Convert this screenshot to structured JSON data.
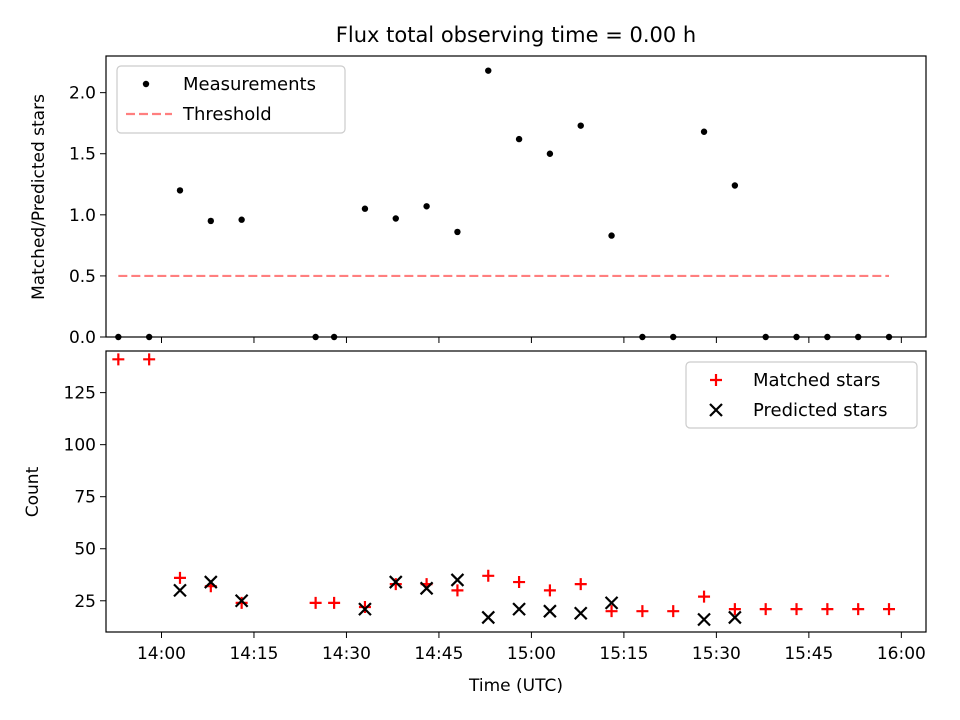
{
  "title": "Flux total observing time = 0.00 h",
  "colors": {
    "measure": "#000000",
    "threshold": "#ff7f7f",
    "matched": "#ff0000",
    "predicted": "#000000"
  },
  "chart_data": [
    {
      "type": "scatter",
      "panel": "top",
      "ylabel": "Matched/Predicted stars",
      "xlim": [
        "13:51",
        "16:04"
      ],
      "ylim": [
        0,
        2.3
      ],
      "yticks": [
        0.0,
        0.5,
        1.0,
        1.5,
        2.0
      ],
      "ytick_labels": [
        "0.0",
        "0.5",
        "1.0",
        "1.5",
        "2.0"
      ],
      "grid": false,
      "legend": {
        "placement": "upper-left",
        "entries": [
          "Measurements",
          "Threshold"
        ]
      },
      "series": [
        {
          "name": "Measurements",
          "marker": "dot",
          "x": [
            "13:53",
            "13:58",
            "14:03",
            "14:08",
            "14:13",
            "14:25",
            "14:28",
            "14:33",
            "14:38",
            "14:43",
            "14:48",
            "14:53",
            "14:58",
            "15:03",
            "15:08",
            "15:13",
            "15:18",
            "15:23",
            "15:28",
            "15:33",
            "15:38",
            "15:43",
            "15:48",
            "15:53",
            "15:58"
          ],
          "y": [
            0.0,
            0.0,
            1.2,
            0.95,
            0.96,
            0.0,
            0.0,
            1.05,
            0.97,
            1.07,
            0.86,
            2.18,
            1.62,
            1.5,
            1.73,
            0.83,
            0.0,
            0.0,
            1.68,
            1.24,
            0.0,
            0.0,
            0.0,
            0.0,
            0.0
          ]
        },
        {
          "name": "Threshold",
          "style": "dashed",
          "x": [
            "13:53",
            "15:58"
          ],
          "y": [
            0.5,
            0.5
          ]
        }
      ]
    },
    {
      "type": "scatter",
      "panel": "bottom",
      "xlabel": "Time (UTC)",
      "ylabel": "Count",
      "xlim": [
        "13:51",
        "16:04"
      ],
      "ylim": [
        10,
        145
      ],
      "xticks": [
        "14:00",
        "14:15",
        "14:30",
        "14:45",
        "15:00",
        "15:15",
        "15:30",
        "15:45",
        "16:00"
      ],
      "yticks": [
        25,
        50,
        75,
        100,
        125
      ],
      "ytick_labels": [
        "25",
        "50",
        "75",
        "100",
        "125"
      ],
      "grid": false,
      "legend": {
        "placement": "upper-right",
        "entries": [
          "Matched stars",
          "Predicted stars"
        ]
      },
      "series": [
        {
          "name": "Matched stars",
          "marker": "plus",
          "x": [
            "13:53",
            "13:58",
            "14:03",
            "14:08",
            "14:13",
            "14:25",
            "14:28",
            "14:33",
            "14:38",
            "14:43",
            "14:48",
            "14:53",
            "14:58",
            "15:03",
            "15:08",
            "15:13",
            "15:18",
            "15:23",
            "15:28",
            "15:33",
            "15:38",
            "15:43",
            "15:48",
            "15:53",
            "15:58"
          ],
          "y": [
            141,
            141,
            36,
            32,
            24,
            24,
            24,
            22,
            33,
            33,
            30,
            37,
            34,
            30,
            33,
            20,
            20,
            20,
            27,
            21,
            21,
            21,
            21,
            21,
            21
          ]
        },
        {
          "name": "Predicted stars",
          "marker": "x",
          "x": [
            "14:03",
            "14:08",
            "14:13",
            "14:33",
            "14:38",
            "14:43",
            "14:48",
            "14:53",
            "14:58",
            "15:03",
            "15:08",
            "15:13",
            "15:28",
            "15:33"
          ],
          "y": [
            30,
            34,
            25,
            21,
            34,
            31,
            35,
            17,
            21,
            20,
            19,
            24,
            16,
            17
          ]
        }
      ]
    }
  ]
}
